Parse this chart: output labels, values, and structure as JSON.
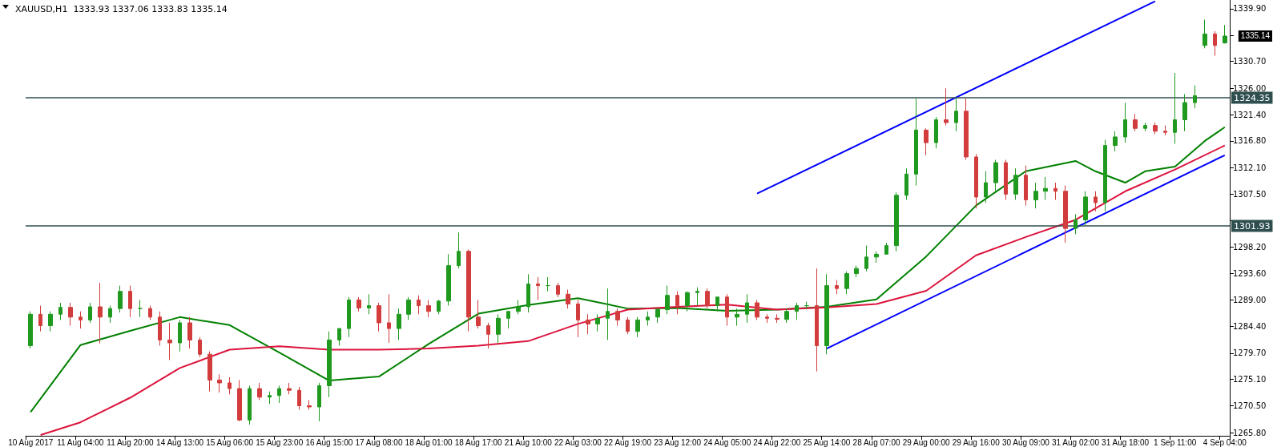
{
  "chart_data": {
    "type": "candlestick",
    "title": "XAUUSD,H1  1333.93 1337.06 1333.83 1335.14",
    "categories": [
      "10 Aug 2017",
      null,
      null,
      null,
      null,
      "11 Aug 04:00",
      null,
      null,
      null,
      null,
      "11 Aug 20:00",
      null,
      null,
      null,
      null,
      "14 Aug 13:00",
      null,
      null,
      null,
      null,
      "15 Aug 06:00",
      null,
      null,
      null,
      null,
      "15 Aug 23:00",
      null,
      null,
      null,
      null,
      "16 Aug 15:00",
      null,
      null,
      null,
      null,
      "17 Aug 08:00",
      null,
      null,
      null,
      null,
      "18 Aug 01:00",
      null,
      null,
      null,
      null,
      "18 Aug 17:00",
      null,
      null,
      null,
      null,
      "21 Aug 10:00",
      null,
      null,
      null,
      null,
      "22 Aug 03:00",
      null,
      null,
      null,
      null,
      "22 Aug 19:00",
      null,
      null,
      null,
      null,
      "23 Aug 12:00",
      null,
      null,
      null,
      null,
      "24 Aug 05:00",
      null,
      null,
      null,
      null,
      "24 Aug 22:00",
      null,
      null,
      null,
      null,
      "25 Aug 14:00",
      null,
      null,
      null,
      null,
      "28 Aug 07:00",
      null,
      null,
      null,
      null,
      "29 Aug 00:00",
      null,
      null,
      null,
      null,
      "29 Aug 16:00",
      null,
      null,
      null,
      null,
      "30 Aug 09:00",
      null,
      null,
      null,
      null,
      "31 Aug 02:00",
      null,
      null,
      null,
      null,
      "31 Aug 18:00",
      null,
      null,
      null,
      null,
      "1 Sep 11:00",
      null,
      null,
      null,
      null,
      "4 Sep 04:00"
    ],
    "ohlc": [
      [
        1281,
        1287,
        1280.5,
        1286.5
      ],
      [
        1286.5,
        1288,
        1283.5,
        1284.5
      ],
      [
        1284.5,
        1287,
        1283.5,
        1286.5
      ],
      [
        1286.5,
        1288.5,
        1285.5,
        1287.7
      ],
      [
        1287.7,
        1288.5,
        1284.5,
        1286
      ],
      [
        1286,
        1287,
        1284,
        1285.5
      ],
      [
        1285.5,
        1288.5,
        1285,
        1287.8
      ],
      [
        1287.8,
        1292,
        1281.4,
        1286
      ],
      [
        1286,
        1288,
        1285,
        1287.5
      ],
      [
        1287.5,
        1291.5,
        1286.8,
        1290.5
      ],
      [
        1290.5,
        1291.5,
        1286,
        1287.5
      ],
      [
        1287.5,
        1289,
        1286,
        1287.5
      ],
      [
        1287.5,
        1288,
        1285.5,
        1286
      ],
      [
        1286,
        1287,
        1281,
        1282
      ],
      [
        1282,
        1285,
        1278.5,
        1281.5
      ],
      [
        1281.5,
        1285.5,
        1280,
        1285
      ],
      [
        1285,
        1286,
        1280.5,
        1282
      ],
      [
        1282,
        1282.5,
        1279,
        1279.5
      ],
      [
        1279.5,
        1280,
        1273,
        1275
      ],
      [
        1275,
        1276,
        1272.8,
        1274.5
      ],
      [
        1274.5,
        1275.5,
        1272.5,
        1273.5
      ],
      [
        1273.5,
        1275,
        1267.8,
        1268
      ],
      [
        1268,
        1274,
        1267.2,
        1273.5
      ],
      [
        1273.5,
        1274.5,
        1271.5,
        1272
      ],
      [
        1272,
        1273,
        1270.8,
        1272.3
      ],
      [
        1272.3,
        1274,
        1271,
        1273.5
      ],
      [
        1273.5,
        1274.5,
        1272.5,
        1273.2
      ],
      [
        1273.2,
        1273.8,
        1269.8,
        1270.5
      ],
      [
        1270.5,
        1271.5,
        1269.8,
        1270.3
      ],
      [
        1270.3,
        1274.5,
        1267.8,
        1274
      ],
      [
        1274,
        1283.5,
        1272,
        1282
      ],
      [
        1282,
        1284,
        1281,
        1284
      ],
      [
        1284,
        1289.5,
        1282.5,
        1289
      ],
      [
        1289,
        1289.5,
        1287,
        1287.6
      ],
      [
        1287.6,
        1290,
        1286.5,
        1288
      ],
      [
        1288,
        1288.5,
        1283.5,
        1285
      ],
      [
        1285,
        1290,
        1281.5,
        1284
      ],
      [
        1284,
        1287.5,
        1282,
        1286.5
      ],
      [
        1286.5,
        1289.5,
        1285.5,
        1289
      ],
      [
        1289,
        1289.8,
        1286.5,
        1288
      ],
      [
        1288,
        1289,
        1286,
        1287
      ],
      [
        1287,
        1289,
        1286.5,
        1288.8
      ],
      [
        1288.8,
        1297,
        1288,
        1295
      ],
      [
        1295,
        1300.8,
        1294.5,
        1297.5
      ],
      [
        1297.5,
        1297.8,
        1283.5,
        1286
      ],
      [
        1286,
        1289,
        1284,
        1284.5
      ],
      [
        1284.5,
        1285,
        1280.5,
        1283
      ],
      [
        1283,
        1286.5,
        1281.5,
        1285.8
      ],
      [
        1285.8,
        1287,
        1284,
        1287
      ],
      [
        1287,
        1289,
        1286.5,
        1287.8
      ],
      [
        1287.8,
        1293.5,
        1286.8,
        1291.8
      ],
      [
        1291.8,
        1293,
        1289,
        1291.5
      ],
      [
        1291.5,
        1293,
        1290.5,
        1291.5
      ],
      [
        1291.5,
        1292,
        1289.5,
        1290
      ],
      [
        1290,
        1290.8,
        1287.5,
        1288.3
      ],
      [
        1288.3,
        1289,
        1282.5,
        1285.5
      ],
      [
        1285.5,
        1286.5,
        1283,
        1284.8
      ],
      [
        1284.8,
        1286.5,
        1283.5,
        1285.8
      ],
      [
        1285.8,
        1291,
        1282,
        1287
      ],
      [
        1287,
        1287.5,
        1284.5,
        1285.5
      ],
      [
        1285.5,
        1286,
        1283,
        1283.5
      ],
      [
        1283.5,
        1286,
        1282.5,
        1285.5
      ],
      [
        1285.5,
        1287,
        1284.5,
        1286
      ],
      [
        1286,
        1287.5,
        1285,
        1287.3
      ],
      [
        1287.3,
        1291.5,
        1286.5,
        1289.8
      ],
      [
        1289.8,
        1290.5,
        1286.5,
        1288
      ],
      [
        1288,
        1290.5,
        1287,
        1290.3
      ],
      [
        1290.3,
        1291.2,
        1288,
        1290.5
      ],
      [
        1290.5,
        1291,
        1287.5,
        1288
      ],
      [
        1288,
        1289.5,
        1287,
        1289.5
      ],
      [
        1289.5,
        1290,
        1284.5,
        1286
      ],
      [
        1286,
        1287.5,
        1284.5,
        1286.5
      ],
      [
        1286.5,
        1290,
        1285,
        1288.5
      ],
      [
        1288.5,
        1289,
        1285.5,
        1286
      ],
      [
        1286,
        1286.5,
        1285,
        1285.8
      ],
      [
        1285.8,
        1286.5,
        1285,
        1285.6
      ],
      [
        1285.6,
        1287.5,
        1285,
        1287
      ],
      [
        1287,
        1288.5,
        1285.5,
        1288
      ],
      [
        1288,
        1288.7,
        1287.5,
        1288
      ],
      [
        1288,
        1294.5,
        1276.5,
        1281
      ],
      [
        1281,
        1293.5,
        1279.5,
        1291.5
      ],
      [
        1291.5,
        1292.5,
        1290,
        1291
      ],
      [
        1291,
        1294,
        1290,
        1293.6
      ],
      [
        1293.6,
        1295,
        1293,
        1294.5
      ],
      [
        1294.5,
        1298.5,
        1294,
        1296.5
      ],
      [
        1296.5,
        1297.5,
        1295.5,
        1297
      ],
      [
        1297,
        1299,
        1297,
        1298.5
      ],
      [
        1298.5,
        1307.8,
        1297.5,
        1307.3
      ],
      [
        1307.3,
        1312,
        1306.5,
        1311
      ],
      [
        1311,
        1324.2,
        1309,
        1318.7
      ],
      [
        1318.7,
        1319,
        1314.3,
        1316.5
      ],
      [
        1316.5,
        1321,
        1315.5,
        1320.5
      ],
      [
        1320.5,
        1326,
        1319.5,
        1320
      ],
      [
        1320,
        1324.2,
        1318.5,
        1322
      ],
      [
        1322,
        1324.2,
        1313.5,
        1314
      ],
      [
        1314,
        1314.5,
        1305,
        1307
      ],
      [
        1307,
        1311.5,
        1306,
        1309.5
      ],
      [
        1309.5,
        1313.5,
        1308,
        1313
      ],
      [
        1313,
        1313.5,
        1306.5,
        1307.5
      ],
      [
        1307.5,
        1312,
        1306.5,
        1310.8
      ],
      [
        1310.8,
        1312.5,
        1305.5,
        1306.5
      ],
      [
        1306.5,
        1309.5,
        1305,
        1308
      ],
      [
        1308,
        1310.5,
        1306.5,
        1308.5
      ],
      [
        1308.5,
        1309.5,
        1306.5,
        1308
      ],
      [
        1308,
        1309,
        1299,
        1301.5
      ],
      [
        1301.5,
        1304,
        1300.5,
        1303
      ],
      [
        1303,
        1308,
        1302,
        1307
      ],
      [
        1307,
        1308,
        1304.5,
        1306
      ],
      [
        1306,
        1317,
        1304.5,
        1316
      ],
      [
        1316,
        1318.5,
        1315,
        1317.5
      ],
      [
        1317.5,
        1323.5,
        1316.5,
        1320.5
      ],
      [
        1320.5,
        1321.5,
        1318.5,
        1319
      ],
      [
        1319,
        1320,
        1318.5,
        1319.5
      ],
      [
        1319.5,
        1320,
        1318,
        1318.5
      ],
      [
        1318.5,
        1319.5,
        1317.8,
        1318.3
      ],
      [
        1318.3,
        1328.7,
        1316.3,
        1320.5
      ],
      [
        1320.5,
        1325,
        1318.5,
        1323.5
      ],
      [
        1323.5,
        1326.5,
        1322.5,
        1324.7
      ],
      [
        1333.5,
        1338,
        1333,
        1335.5
      ],
      [
        1335.5,
        1336,
        1331.7,
        1333.5
      ],
      [
        1333.93,
        1337.06,
        1333.83,
        1335.14
      ]
    ],
    "colors": [
      "#1f9a1f",
      "#d23c3c",
      "#1f9a1f",
      "#1f9a1f",
      "#d23c3c",
      "#d23c3c",
      "#1f9a1f",
      "#d23c3c",
      "#1f9a1f",
      "#1f9a1f",
      "#d23c3c",
      "#1f9a1f",
      "#d23c3c",
      "#d23c3c",
      "#d23c3c",
      "#1f9a1f",
      "#d23c3c",
      "#d23c3c",
      "#d23c3c",
      "#d23c3c",
      "#d23c3c",
      "#d23c3c",
      "#1f9a1f",
      "#d23c3c",
      "#1f9a1f",
      "#1f9a1f",
      "#d23c3c",
      "#d23c3c",
      "#d23c3c",
      "#1f9a1f",
      "#1f9a1f",
      "#1f9a1f",
      "#1f9a1f",
      "#d23c3c",
      "#1f9a1f",
      "#d23c3c",
      "#d23c3c",
      "#1f9a1f",
      "#1f9a1f",
      "#d23c3c",
      "#d23c3c",
      "#1f9a1f",
      "#1f9a1f",
      "#1f9a1f",
      "#d23c3c",
      "#d23c3c",
      "#d23c3c",
      "#1f9a1f",
      "#1f9a1f",
      "#1f9a1f",
      "#1f9a1f",
      "#d23c3c",
      "#1f9a1f",
      "#d23c3c",
      "#d23c3c",
      "#d23c3c",
      "#d23c3c",
      "#1f9a1f",
      "#1f9a1f",
      "#d23c3c",
      "#d23c3c",
      "#1f9a1f",
      "#1f9a1f",
      "#1f9a1f",
      "#1f9a1f",
      "#d23c3c",
      "#1f9a1f",
      "#1f9a1f",
      "#d23c3c",
      "#1f9a1f",
      "#d23c3c",
      "#1f9a1f",
      "#1f9a1f",
      "#d23c3c",
      "#d23c3c",
      "#d23c3c",
      "#1f9a1f",
      "#1f9a1f",
      "#1f9a1f",
      "#d23c3c",
      "#1f9a1f",
      "#d23c3c",
      "#1f9a1f",
      "#1f9a1f",
      "#1f9a1f",
      "#1f9a1f",
      "#1f9a1f",
      "#1f9a1f",
      "#1f9a1f",
      "#1f9a1f",
      "#d23c3c",
      "#1f9a1f",
      "#d23c3c",
      "#1f9a1f",
      "#d23c3c",
      "#d23c3c",
      "#1f9a1f",
      "#1f9a1f",
      "#d23c3c",
      "#1f9a1f",
      "#d23c3c",
      "#1f9a1f",
      "#1f9a1f",
      "#d23c3c",
      "#d23c3c",
      "#1f9a1f",
      "#1f9a1f",
      "#d23c3c",
      "#1f9a1f",
      "#1f9a1f",
      "#1f9a1f",
      "#d23c3c",
      "#1f9a1f",
      "#d23c3c",
      "#d23c3c",
      "#1f9a1f",
      "#1f9a1f",
      "#1f9a1f",
      "#1f9a1f",
      "#d23c3c",
      "#1f9a1f"
    ],
    "series": [
      {
        "type": "line",
        "color": "#008000",
        "values": [
          1269.4,
          null,
          null,
          null,
          null,
          1281.1,
          null,
          null,
          null,
          null,
          1283.6,
          null,
          null,
          null,
          null,
          1286.0,
          null,
          null,
          null,
          null,
          1284.6,
          null,
          null,
          null,
          null,
          1279.8,
          null,
          null,
          null,
          null,
          1274.9,
          null,
          null,
          null,
          null,
          1275.6,
          null,
          null,
          null,
          null,
          1281.3,
          null,
          null,
          null,
          null,
          1286.6,
          null,
          null,
          null,
          null,
          1288.1,
          null,
          null,
          null,
          null,
          1289.3,
          null,
          null,
          null,
          null,
          1287.5,
          null,
          null,
          null,
          null,
          1287.6,
          null,
          null,
          null,
          null,
          1287.1,
          null,
          null,
          null,
          null,
          1287.3,
          null,
          null,
          null,
          null,
          1287.8,
          null,
          null,
          null,
          null,
          1289.1,
          null,
          null,
          null,
          null,
          1296.6,
          null,
          null,
          null,
          null,
          1305.5,
          null,
          null,
          null,
          null,
          1311.5,
          null,
          null,
          null,
          null,
          1313.3,
          null,
          1311.5,
          null,
          null,
          1309.5,
          null,
          1311.5,
          null,
          null,
          1312.3,
          null,
          null,
          1316.8,
          null,
          1319.2
        ]
      },
      {
        "type": "line",
        "color": "#dc143c",
        "values": [
          null,
          1265.4,
          null,
          null,
          null,
          1267.6,
          null,
          null,
          null,
          null,
          1271.9,
          null,
          null,
          null,
          null,
          1277.1,
          null,
          null,
          null,
          null,
          1280.3,
          null,
          null,
          null,
          null,
          1280.9,
          null,
          null,
          null,
          null,
          1280.3,
          null,
          null,
          null,
          null,
          1280.3,
          null,
          null,
          null,
          null,
          1280.5,
          null,
          null,
          null,
          null,
          1281.0,
          null,
          null,
          null,
          null,
          1281.8,
          null,
          null,
          null,
          null,
          1284.8,
          null,
          null,
          null,
          null,
          1287.3,
          null,
          null,
          null,
          null,
          1287.8,
          null,
          null,
          null,
          null,
          1288.2,
          null,
          null,
          null,
          null,
          1287.3,
          null,
          null,
          null,
          null,
          1287.7,
          null,
          null,
          null,
          null,
          1288.3,
          null,
          null,
          null,
          null,
          1290.6,
          null,
          null,
          null,
          null,
          1296.8,
          null,
          null,
          null,
          null,
          1300.0,
          null,
          null,
          null,
          null,
          1303.0,
          null,
          null,
          null,
          null,
          1308.0,
          null,
          null,
          null,
          null,
          1311.8,
          null,
          null,
          null,
          null,
          1316.0
        ]
      },
      {
        "type": "line",
        "color": "#0000ff",
        "values": [
          null,
          null,
          null,
          null,
          null,
          null,
          null,
          null,
          null,
          null,
          null,
          null,
          null,
          null,
          null,
          null,
          null,
          null,
          null,
          null,
          null,
          null,
          null,
          null,
          null,
          null,
          null,
          null,
          null,
          null,
          null,
          null,
          null,
          null,
          null,
          null,
          null,
          null,
          null,
          null,
          null,
          null,
          null,
          null,
          null,
          null,
          null,
          null,
          null,
          null,
          null,
          null,
          null,
          null,
          null,
          null,
          null,
          null,
          null,
          null,
          null,
          null,
          null,
          null,
          null,
          null,
          null,
          null,
          null,
          null,
          null,
          null,
          null,
          1307.6,
          null,
          null,
          null,
          null,
          null,
          null,
          null,
          null,
          null,
          null,
          null,
          null,
          null,
          null,
          null,
          null,
          null,
          null,
          null,
          null,
          null,
          null,
          null,
          null,
          null,
          null,
          null,
          null,
          null,
          null,
          null,
          null,
          null,
          null,
          null,
          null,
          null,
          null,
          null,
          1341.2,
          null,
          null,
          null,
          null,
          null,
          null,
          null
        ]
      },
      {
        "type": "line",
        "color": "#0000ff",
        "values": [
          null,
          null,
          null,
          null,
          null,
          null,
          null,
          null,
          null,
          null,
          null,
          null,
          null,
          null,
          null,
          null,
          null,
          null,
          null,
          null,
          null,
          null,
          null,
          null,
          null,
          null,
          null,
          null,
          null,
          null,
          null,
          null,
          null,
          null,
          null,
          null,
          null,
          null,
          null,
          null,
          null,
          null,
          null,
          null,
          null,
          null,
          null,
          null,
          null,
          null,
          null,
          null,
          null,
          null,
          null,
          null,
          null,
          null,
          null,
          null,
          null,
          null,
          null,
          null,
          null,
          null,
          null,
          null,
          null,
          null,
          null,
          null,
          null,
          null,
          null,
          null,
          null,
          null,
          null,
          null,
          1280.5,
          null,
          null,
          null,
          null,
          null,
          null,
          null,
          null,
          null,
          null,
          null,
          null,
          null,
          null,
          null,
          null,
          null,
          null,
          null,
          null,
          null,
          null,
          null,
          null,
          null,
          null,
          null,
          null,
          null,
          null,
          null,
          null,
          null,
          null,
          null,
          null,
          null,
          null,
          null,
          1314.3
        ]
      }
    ],
    "ylim": [
      1265.25,
      1341.44
    ],
    "yticks": [
      {
        "value": 1339.9,
        "label": "1339.90"
      },
      {
        "value": 1335.3,
        "label": null
      },
      {
        "value": 1330.7,
        "label": "1330.70"
      },
      {
        "value": 1326.0,
        "label": "1326.00"
      },
      {
        "value": 1321.4,
        "label": "1321.40"
      },
      {
        "value": 1316.8,
        "label": "1316.80"
      },
      {
        "value": 1312.1,
        "label": "1312.10"
      },
      {
        "value": 1307.5,
        "label": "1307.50"
      },
      {
        "value": 1302.9,
        "label": null
      },
      {
        "value": 1298.2,
        "label": "1298.20"
      },
      {
        "value": 1293.6,
        "label": "1293.60"
      },
      {
        "value": 1289.0,
        "label": "1289.00"
      },
      {
        "value": 1284.4,
        "label": "1284.40"
      },
      {
        "value": 1279.7,
        "label": "1279.70"
      },
      {
        "value": 1275.1,
        "label": "1275.10"
      },
      {
        "value": 1270.5,
        "label": "1270.50"
      },
      {
        "value": 1265.8,
        "label": "1265.80"
      }
    ],
    "ref_lines": [
      {
        "axis": "y",
        "value": 1324.35,
        "label": "1324.35",
        "color": "#2f4f4f"
      },
      {
        "axis": "y",
        "value": 1301.93,
        "label": "1301.93",
        "color": "#2f4f4f"
      }
    ],
    "annotations": [
      "1335.14"
    ],
    "grid": false
  }
}
